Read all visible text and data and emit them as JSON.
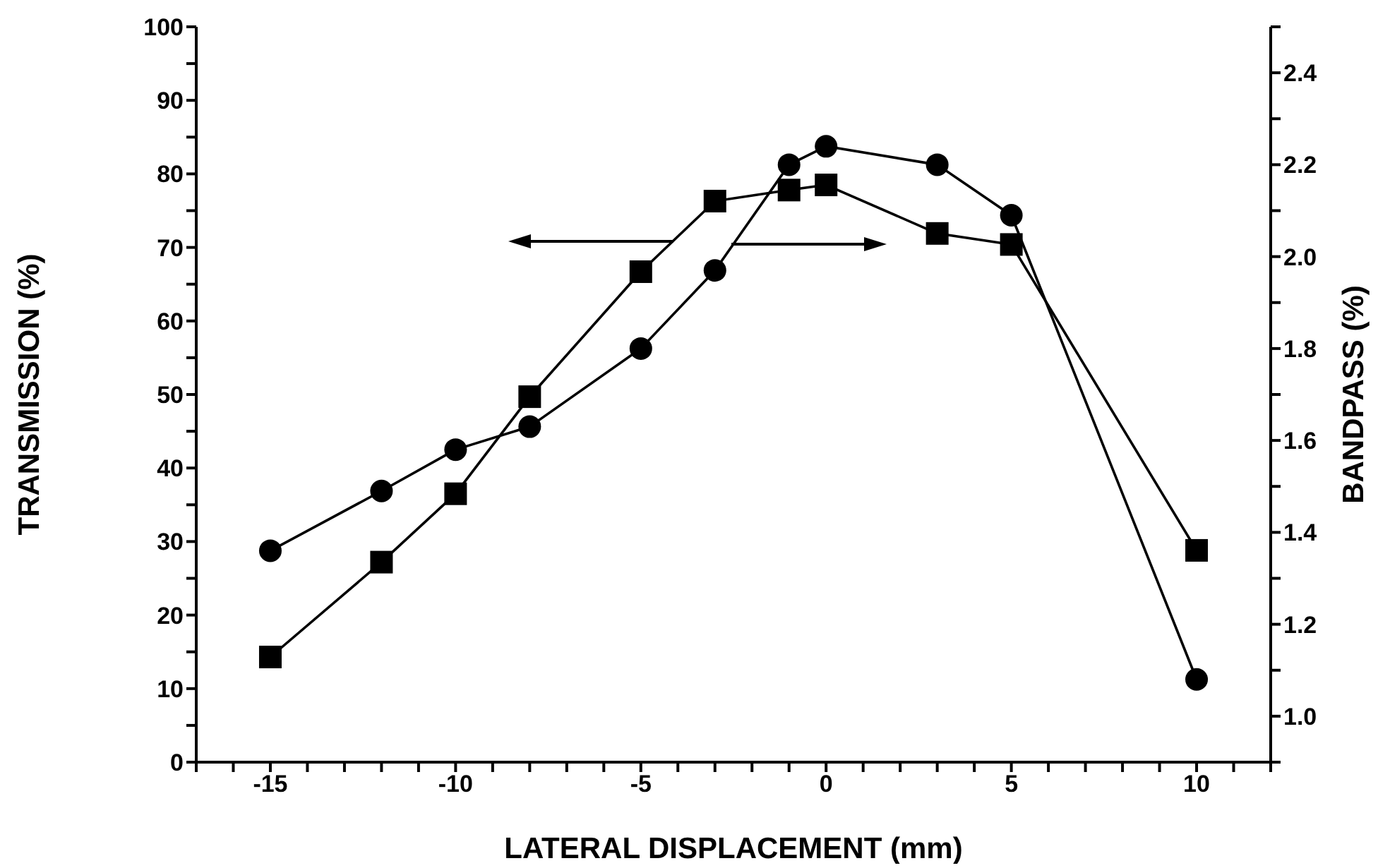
{
  "chart_data": {
    "type": "line",
    "xlabel": "LATERAL DISPLACEMENT (mm)",
    "ylabel": "TRANSMISSION (%)",
    "y2label": "BANDPASS (%)",
    "x": [
      -15,
      -12,
      -10,
      -8,
      -5,
      -3,
      -1,
      0,
      3,
      5,
      10
    ],
    "series": [
      {
        "color": "#000000",
        "marker": "square",
        "values": [
          14.3,
          27.2,
          36.5,
          49.7,
          66.7,
          76.3,
          77.8,
          78.5,
          71.9,
          70.4,
          28.8
        ]
      },
      {
        "color": "#000000",
        "marker": "circle",
        "axis": "y2",
        "values": [
          1.36,
          1.49,
          1.58,
          1.63,
          1.8,
          1.97,
          2.2,
          2.24,
          2.2,
          2.09,
          1.08
        ]
      }
    ],
    "xlim": [
      -17,
      12
    ],
    "xticks": [
      {
        "value": -17,
        "label": null
      },
      {
        "value": -16,
        "label": null
      },
      -15,
      {
        "value": -14,
        "label": null
      },
      {
        "value": -13,
        "label": null
      },
      {
        "value": -12,
        "label": null
      },
      {
        "value": -11,
        "label": null
      },
      -10,
      {
        "value": -9,
        "label": null
      },
      {
        "value": -8,
        "label": null
      },
      {
        "value": -7,
        "label": null
      },
      {
        "value": -6,
        "label": null
      },
      -5,
      {
        "value": -4,
        "label": null
      },
      {
        "value": -3,
        "label": null
      },
      {
        "value": -2,
        "label": null
      },
      {
        "value": -1,
        "label": null
      },
      0,
      {
        "value": 1,
        "label": null
      },
      {
        "value": 2,
        "label": null
      },
      {
        "value": 3,
        "label": null
      },
      {
        "value": 4,
        "label": null
      },
      5,
      {
        "value": 6,
        "label": null
      },
      {
        "value": 7,
        "label": null
      },
      {
        "value": 8,
        "label": null
      },
      {
        "value": 9,
        "label": null
      },
      10,
      {
        "value": 11,
        "label": null
      },
      {
        "value": 12,
        "label": null
      }
    ],
    "ylim": [
      0,
      100
    ],
    "yticks": [
      0,
      {
        "value": 5,
        "label": null
      },
      10,
      {
        "value": 15,
        "label": null
      },
      20,
      {
        "value": 25,
        "label": null
      },
      30,
      {
        "value": 35,
        "label": null
      },
      40,
      {
        "value": 45,
        "label": null
      },
      50,
      {
        "value": 55,
        "label": null
      },
      60,
      {
        "value": 65,
        "label": null
      },
      70,
      {
        "value": 75,
        "label": null
      },
      80,
      {
        "value": 85,
        "label": null
      },
      90,
      {
        "value": 95,
        "label": null
      },
      100
    ],
    "y2lim": [
      0.9,
      2.5
    ],
    "y2ticks": [
      {
        "value": 0.9,
        "label": null
      },
      {
        "value": 1.0,
        "label": "1.0"
      },
      {
        "value": 1.1,
        "label": null
      },
      1.2,
      {
        "value": 1.3,
        "label": null
      },
      1.4,
      {
        "value": 1.5,
        "label": null
      },
      1.6,
      {
        "value": 1.7,
        "label": null
      },
      1.8,
      {
        "value": 1.9,
        "label": null
      },
      {
        "value": 2.0,
        "label": "2.0"
      },
      {
        "value": 2.1,
        "label": null
      },
      2.2,
      {
        "value": 2.3,
        "label": null
      },
      2.4,
      {
        "value": 2.5,
        "label": null
      }
    ],
    "line_style": "solid"
  }
}
